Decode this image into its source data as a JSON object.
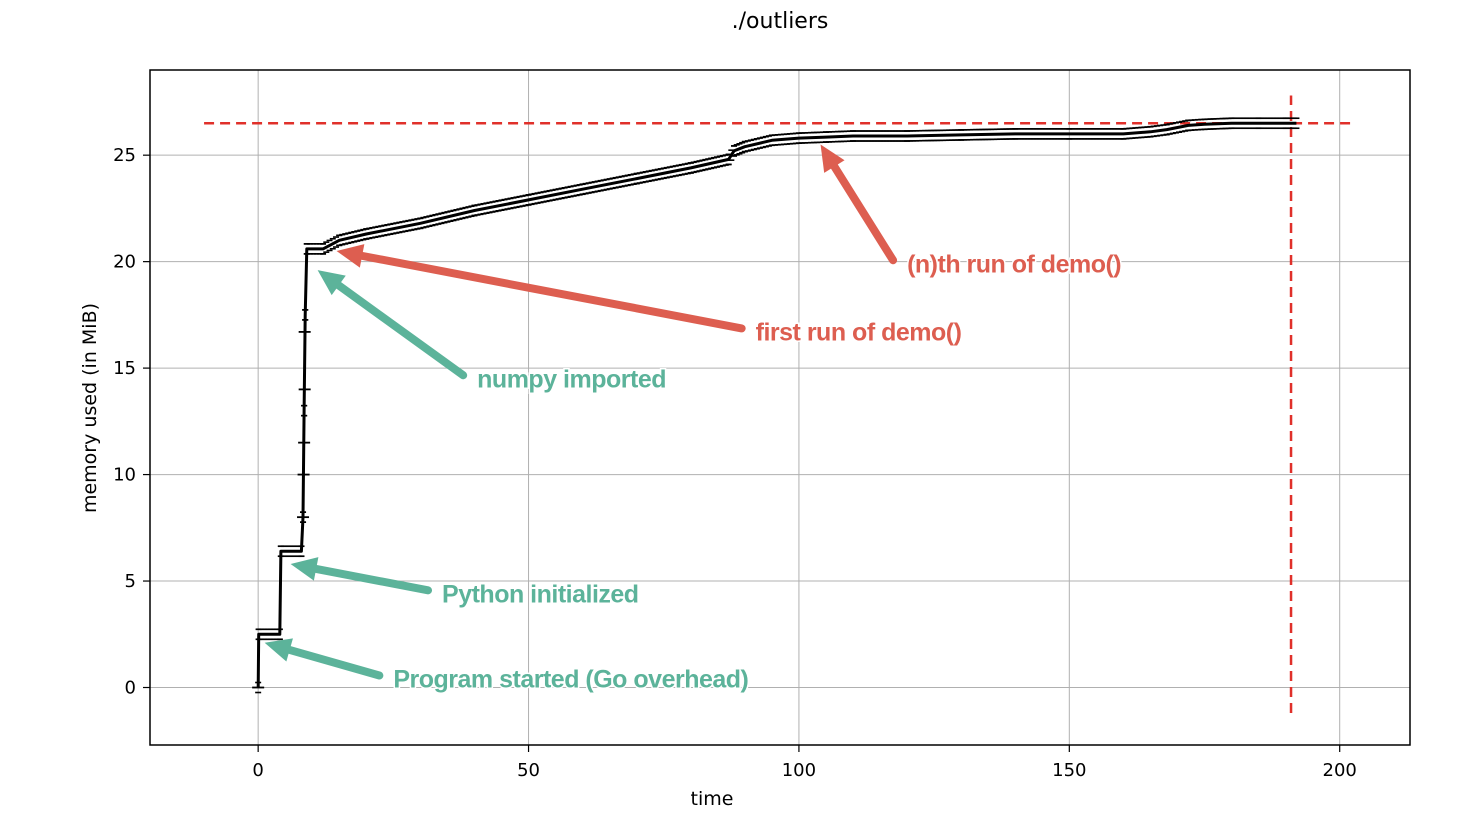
{
  "chart_data": {
    "type": "line",
    "title": "./outliers",
    "xlabel": "time",
    "ylabel": "memory used (in MiB)",
    "xlim": [
      -20,
      213
    ],
    "ylim": [
      -2.7,
      29
    ],
    "grid": true,
    "x_ticks": [
      0,
      50,
      100,
      150,
      200
    ],
    "y_ticks": [
      0,
      5,
      10,
      15,
      20,
      25
    ],
    "x_tick_labels": [
      "0",
      "50",
      "100",
      "150",
      "200"
    ],
    "y_tick_labels": [
      "0",
      "5",
      "10",
      "15",
      "20",
      "25"
    ],
    "series": [
      {
        "name": "memory",
        "color": "#000000",
        "x": [
          0,
          0.1,
          4,
          4.2,
          8,
          8.3,
          8.5,
          8.7,
          9,
          12,
          15,
          20,
          30,
          40,
          50,
          60,
          70,
          80,
          87,
          88,
          90,
          95,
          100,
          105,
          110,
          120,
          130,
          140,
          150,
          160,
          165,
          168,
          172,
          175,
          180,
          185,
          190,
          192
        ],
        "y": [
          0,
          2.5,
          2.5,
          6.4,
          6.4,
          8,
          13,
          17.5,
          20.6,
          20.6,
          21,
          21.3,
          21.8,
          22.4,
          22.9,
          23.4,
          23.9,
          24.4,
          24.8,
          25.2,
          25.4,
          25.7,
          25.8,
          25.85,
          25.9,
          25.9,
          25.95,
          26,
          26,
          26,
          26.1,
          26.2,
          26.4,
          26.45,
          26.5,
          26.5,
          26.5,
          26.5
        ]
      }
    ],
    "reference_lines": [
      {
        "orientation": "horizontal",
        "value": 26.5,
        "x_from": -10,
        "x_to": 202,
        "style": "dashed",
        "color": "#e0302a"
      },
      {
        "orientation": "vertical",
        "value": 191,
        "y_from": -1.2,
        "y_to": 27.8,
        "style": "dashed",
        "color": "#e0302a"
      }
    ],
    "annotations": [
      {
        "text": "Program started (Go overhead)",
        "color": "#5cb39a",
        "text_x": 25,
        "text_y": 0,
        "arrow_to": [
          1.2,
          2.1
        ]
      },
      {
        "text": "Python initialized",
        "color": "#5cb39a",
        "text_x": 34,
        "text_y": 4,
        "arrow_to": [
          6,
          5.8
        ]
      },
      {
        "text": "numpy imported",
        "color": "#5cb39a",
        "text_x": 40.5,
        "text_y": 14.1,
        "arrow_to": [
          11,
          19.6
        ]
      },
      {
        "text": "first run of demo()",
        "color": "#dd5e50",
        "text_x": 92,
        "text_y": 16.3,
        "arrow_to": [
          14.5,
          20.5
        ]
      },
      {
        "text": "(n)th run of demo()",
        "color": "#dd5e50",
        "text_x": 120,
        "text_y": 19.5,
        "arrow_to": [
          104,
          25.5
        ]
      }
    ]
  }
}
